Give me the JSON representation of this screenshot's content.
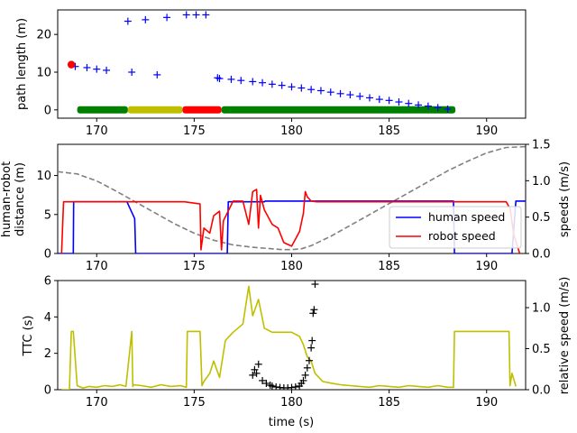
{
  "chart_data": [
    {
      "type": "scatter",
      "xlabel": "",
      "ylabel": "path length (m)",
      "xlim": [
        168,
        192
      ],
      "ylim": [
        -2.2,
        26.5
      ],
      "xticks": [
        170,
        175,
        180,
        185,
        190
      ],
      "yticks": [
        0,
        10,
        20
      ],
      "series": [
        {
          "marker": "plus",
          "color": "#0000ff",
          "x": [
            168.9,
            169.5,
            170.0,
            170.5,
            171.6,
            172.5,
            173.6,
            174.6,
            175.1,
            175.6,
            171.8,
            173.1,
            176.2,
            176.3,
            176.9,
            177.4,
            178.0,
            178.5,
            179.0,
            179.5,
            180.0,
            180.5,
            181.0,
            181.5,
            182.0,
            182.5,
            183.0,
            183.5,
            184.0,
            184.5,
            185.0,
            185.5,
            186.0,
            186.5,
            187.0,
            187.5,
            188.0
          ],
          "y": [
            11.5,
            11.2,
            10.8,
            10.5,
            23.5,
            23.9,
            24.5,
            25.2,
            25.2,
            25.2,
            10.0,
            9.3,
            8.5,
            8.3,
            8.1,
            7.8,
            7.5,
            7.2,
            6.8,
            6.5,
            6.1,
            5.8,
            5.4,
            5.1,
            4.7,
            4.3,
            4.0,
            3.6,
            3.2,
            2.8,
            2.5,
            2.1,
            1.7,
            1.3,
            1.0,
            0.6,
            0.2
          ]
        },
        {
          "marker": "dot",
          "color": "#ff0000",
          "x": [
            168.7
          ],
          "y": [
            12.0
          ]
        }
      ],
      "timeline": [
        {
          "start": 169.0,
          "end": 171.6,
          "color": "#008000"
        },
        {
          "start": 171.6,
          "end": 174.4,
          "color": "#bfbf00"
        },
        {
          "start": 174.4,
          "end": 176.4,
          "color": "#ff0000"
        },
        {
          "start": 176.4,
          "end": 188.4,
          "color": "#008000"
        }
      ]
    },
    {
      "type": "line",
      "xlabel": "",
      "ylabel": "human-robot\ndistance (m)",
      "ylabel_right": "speeds (m/s)",
      "xlim": [
        168,
        192
      ],
      "ylim": [
        0,
        14
      ],
      "ylim_right": [
        0,
        1.5
      ],
      "xticks": [
        170,
        175,
        180,
        185,
        190
      ],
      "yticks": [
        0,
        5,
        10
      ],
      "yticks_right": [
        0.0,
        0.5,
        1.0,
        1.5
      ],
      "legend_position": "lower-right",
      "series": [
        {
          "name": "",
          "axis": "left",
          "style": "dashed",
          "color": "#808080",
          "x": [
            168,
            169,
            170,
            171,
            172,
            173,
            174,
            175,
            176,
            177,
            178,
            179,
            179.5,
            180,
            180.5,
            181,
            182,
            183,
            184,
            185,
            186,
            187,
            188,
            189,
            190,
            191,
            192
          ],
          "y": [
            10.5,
            10.2,
            9.3,
            8.0,
            6.6,
            5.2,
            3.8,
            2.6,
            1.7,
            1.1,
            0.8,
            0.6,
            0.5,
            0.5,
            0.6,
            1.0,
            2.2,
            3.6,
            5.0,
            6.4,
            7.8,
            9.2,
            10.6,
            11.8,
            12.9,
            13.6,
            13.7
          ]
        },
        {
          "name": "human speed",
          "axis": "right",
          "color": "#0000ff",
          "x": [
            168.0,
            168.8,
            168.82,
            171.55,
            171.95,
            172.0,
            174.5,
            174.85,
            175.0,
            176.7,
            176.75,
            178.6,
            178.65,
            188.3,
            188.35,
            191.3,
            191.5,
            192.0
          ],
          "y": [
            0,
            0,
            0.71,
            0.71,
            0.48,
            0,
            0,
            0,
            0,
            0,
            0.71,
            0.71,
            0.72,
            0.72,
            0,
            0,
            0.72,
            0.72
          ]
        },
        {
          "name": "robot speed",
          "axis": "right",
          "color": "#ff0000",
          "x": [
            168.2,
            168.3,
            171.5,
            172.5,
            173.0,
            174.5,
            175.3,
            175.35,
            175.5,
            175.8,
            176.0,
            176.3,
            176.4,
            176.5,
            177.0,
            177.5,
            177.8,
            178.0,
            178.2,
            178.3,
            178.4,
            178.6,
            179.0,
            179.3,
            179.6,
            180.0,
            180.4,
            180.6,
            180.7,
            180.8,
            181.0,
            181.3,
            182.0,
            185.0,
            190.0,
            191.0,
            191.2,
            191.4,
            191.7
          ],
          "y": [
            0,
            0.71,
            0.71,
            0.71,
            0.71,
            0.71,
            0.68,
            0.05,
            0.35,
            0.28,
            0.52,
            0.58,
            0.05,
            0.45,
            0.72,
            0.72,
            0.4,
            0.85,
            0.88,
            0.35,
            0.8,
            0.6,
            0.4,
            0.35,
            0.15,
            0.1,
            0.3,
            0.55,
            0.85,
            0.78,
            0.72,
            0.71,
            0.71,
            0.71,
            0.71,
            0.71,
            0.62,
            0.25,
            0
          ]
        }
      ]
    },
    {
      "type": "line",
      "xlabel": "time (s)",
      "ylabel": "TTC (s)",
      "ylabel_right": "relative speed (m/s)",
      "xlim": [
        168,
        192
      ],
      "ylim": [
        0,
        6
      ],
      "ylim_right": [
        0,
        1.33
      ],
      "xticks": [
        170,
        175,
        180,
        185,
        190
      ],
      "yticks": [
        0,
        2,
        4,
        6
      ],
      "yticks_right": [
        0.0,
        0.5,
        1.0
      ],
      "series": [
        {
          "name": "",
          "axis": "right",
          "color": "#bfbf00",
          "x": [
            168.2,
            168.6,
            168.7,
            168.8,
            169.0,
            169.3,
            169.6,
            170.0,
            170.4,
            170.8,
            171.2,
            171.5,
            171.8,
            171.85,
            171.9,
            172.3,
            172.8,
            173.3,
            173.8,
            174.3,
            174.6,
            174.65,
            175.3,
            175.4,
            175.5,
            175.8,
            176.0,
            176.3,
            176.6,
            177.0,
            177.5,
            177.8,
            178.0,
            178.3,
            178.6,
            179.0,
            179.5,
            180.0,
            180.4,
            180.6,
            180.8,
            181.0,
            181.2,
            181.4,
            181.6,
            182.0,
            182.5,
            183.0,
            183.5,
            184.0,
            184.5,
            185.0,
            185.5,
            186.0,
            186.5,
            187.0,
            187.5,
            188.0,
            188.3,
            188.35,
            188.6,
            189.0,
            189.5,
            190.0,
            190.5,
            191.0,
            191.15,
            191.2,
            191.3,
            191.5
          ],
          "y": [
            0,
            0,
            0.71,
            0.71,
            0.05,
            0.02,
            0.04,
            0.03,
            0.05,
            0.04,
            0.06,
            0.04,
            0.71,
            0.04,
            0.06,
            0.05,
            0.03,
            0.06,
            0.04,
            0.05,
            0.03,
            0.71,
            0.71,
            0.05,
            0.1,
            0.2,
            0.35,
            0.15,
            0.6,
            0.7,
            0.8,
            1.26,
            0.9,
            1.1,
            0.75,
            0.7,
            0.7,
            0.7,
            0.65,
            0.55,
            0.4,
            0.35,
            0.2,
            0.15,
            0.1,
            0.08,
            0.06,
            0.05,
            0.04,
            0.03,
            0.05,
            0.04,
            0.03,
            0.05,
            0.04,
            0.03,
            0.05,
            0.03,
            0.03,
            0.71,
            0.71,
            0.71,
            0.71,
            0.71,
            0.71,
            0.71,
            0.71,
            0.05,
            0.2,
            0.04
          ]
        },
        {
          "name": "",
          "axis": "left",
          "marker": "plus",
          "color": "#000000",
          "x": [
            178.0,
            178.1,
            178.2,
            178.3,
            178.5,
            178.7,
            178.9,
            179.0,
            179.2,
            179.4,
            179.6,
            179.8,
            180.0,
            180.2,
            180.4,
            180.5,
            180.6,
            180.7,
            180.8,
            180.9,
            181.0,
            181.05,
            181.1,
            181.15,
            181.2
          ],
          "y": [
            0.8,
            1.1,
            0.9,
            1.4,
            0.5,
            0.35,
            0.25,
            0.2,
            0.15,
            0.12,
            0.1,
            0.1,
            0.12,
            0.15,
            0.2,
            0.35,
            0.5,
            0.8,
            1.2,
            1.6,
            2.3,
            2.7,
            4.2,
            4.4,
            5.8
          ]
        }
      ]
    }
  ],
  "legend": {
    "items": [
      {
        "label": "human speed",
        "color": "#0000ff"
      },
      {
        "label": "robot speed",
        "color": "#ff0000"
      }
    ]
  }
}
